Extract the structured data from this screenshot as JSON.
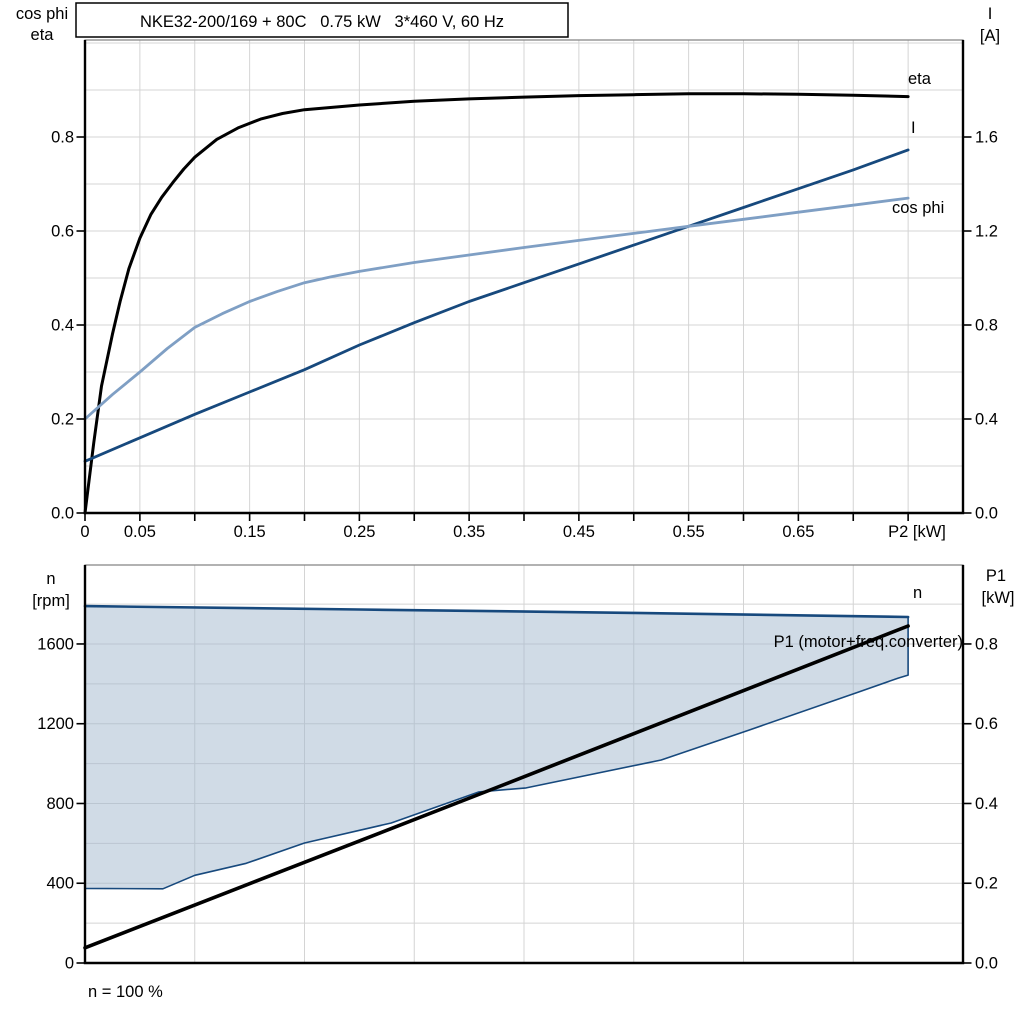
{
  "page": {
    "background": "#ffffff"
  },
  "colors": {
    "black": "#000000",
    "dark_blue": "#17497d",
    "light_blue": "#7f9fc4",
    "region_fill": "#a1b7cd",
    "gridline": "#d4d4d4",
    "frame": "#7f7f7f"
  },
  "chart_data": [
    {
      "id": "efficiency-chart",
      "type": "line",
      "title": "NKE32-200/169 + 80C   0.75 kW   3*460 V, 60 Hz",
      "left_axis_label_lines": [
        "cos phi",
        "eta"
      ],
      "right_axis_label_lines": [
        "I",
        "[A]"
      ],
      "x_axis_label": "P2 [kW]",
      "x_range": [
        0,
        0.8
      ],
      "yl_range": [
        0,
        1.0064
      ],
      "yr_range": [
        0,
        2.0128
      ],
      "grid": {
        "x_step": 0.05,
        "yl_step": 0.1
      },
      "left_ticks": [
        {
          "v": 0.0,
          "label": "0.0"
        },
        {
          "v": 0.2,
          "label": "0.2"
        },
        {
          "v": 0.4,
          "label": "0.4"
        },
        {
          "v": 0.6,
          "label": "0.6"
        },
        {
          "v": 0.8,
          "label": "0.8"
        }
      ],
      "right_ticks": [
        {
          "v": 0.0,
          "label": "0.0"
        },
        {
          "v": 0.4,
          "label": "0.4"
        },
        {
          "v": 0.8,
          "label": "0.8"
        },
        {
          "v": 1.2,
          "label": "1.2"
        },
        {
          "v": 1.6,
          "label": "1.6"
        }
      ],
      "x_ticks": [
        {
          "v": 0,
          "label": "0"
        },
        {
          "v": 0.05,
          "label": "0.05"
        },
        {
          "v": 0.1
        },
        {
          "v": 0.15,
          "label": "0.15"
        },
        {
          "v": 0.2
        },
        {
          "v": 0.25,
          "label": "0.25"
        },
        {
          "v": 0.3
        },
        {
          "v": 0.35,
          "label": "0.35"
        },
        {
          "v": 0.4
        },
        {
          "v": 0.45,
          "label": "0.45"
        },
        {
          "v": 0.5
        },
        {
          "v": 0.55,
          "label": "0.55"
        },
        {
          "v": 0.6
        },
        {
          "v": 0.65,
          "label": "0.65"
        },
        {
          "v": 0.7
        },
        {
          "v": 0.75
        }
      ],
      "series": [
        {
          "key": "eta",
          "name": "eta",
          "color": "#000000",
          "axis": "left",
          "points": [
            [
              0,
              0
            ],
            [
              0.008,
              0.15
            ],
            [
              0.015,
              0.27
            ],
            [
              0.025,
              0.38
            ],
            [
              0.032,
              0.45
            ],
            [
              0.04,
              0.52
            ],
            [
              0.05,
              0.585
            ],
            [
              0.06,
              0.635
            ],
            [
              0.07,
              0.672
            ],
            [
              0.08,
              0.703
            ],
            [
              0.09,
              0.732
            ],
            [
              0.1,
              0.757
            ],
            [
              0.12,
              0.795
            ],
            [
              0.14,
              0.82
            ],
            [
              0.16,
              0.838
            ],
            [
              0.18,
              0.85
            ],
            [
              0.2,
              0.858
            ],
            [
              0.225,
              0.863
            ],
            [
              0.25,
              0.868
            ],
            [
              0.3,
              0.876
            ],
            [
              0.35,
              0.881
            ],
            [
              0.4,
              0.885
            ],
            [
              0.45,
              0.888
            ],
            [
              0.5,
              0.89
            ],
            [
              0.55,
              0.892
            ],
            [
              0.6,
              0.892
            ],
            [
              0.65,
              0.891
            ],
            [
              0.7,
              0.889
            ],
            [
              0.75,
              0.886
            ]
          ]
        },
        {
          "key": "current",
          "name": "I",
          "color": "#17497d",
          "axis": "right",
          "points": [
            [
              0,
              0.22
            ],
            [
              0.05,
              0.32
            ],
            [
              0.1,
              0.42
            ],
            [
              0.15,
              0.515
            ],
            [
              0.2,
              0.61
            ],
            [
              0.25,
              0.715
            ],
            [
              0.3,
              0.81
            ],
            [
              0.35,
              0.9
            ],
            [
              0.4,
              0.98
            ],
            [
              0.45,
              1.06
            ],
            [
              0.5,
              1.14
            ],
            [
              0.55,
              1.22
            ],
            [
              0.6,
              1.3
            ],
            [
              0.65,
              1.38
            ],
            [
              0.7,
              1.46
            ],
            [
              0.75,
              1.545
            ]
          ]
        },
        {
          "key": "cos-phi",
          "name": "cos phi",
          "color": "#7f9fc4",
          "axis": "left",
          "points": [
            [
              0,
              0.2
            ],
            [
              0.025,
              0.252
            ],
            [
              0.05,
              0.3
            ],
            [
              0.075,
              0.35
            ],
            [
              0.1,
              0.395
            ],
            [
              0.125,
              0.424
            ],
            [
              0.15,
              0.45
            ],
            [
              0.175,
              0.471
            ],
            [
              0.2,
              0.49
            ],
            [
              0.225,
              0.503
            ],
            [
              0.25,
              0.514
            ],
            [
              0.3,
              0.533
            ],
            [
              0.35,
              0.549
            ],
            [
              0.4,
              0.565
            ],
            [
              0.45,
              0.58
            ],
            [
              0.5,
              0.595
            ],
            [
              0.55,
              0.61
            ],
            [
              0.6,
              0.625
            ],
            [
              0.65,
              0.64
            ],
            [
              0.7,
              0.655
            ],
            [
              0.75,
              0.67
            ]
          ]
        }
      ]
    },
    {
      "id": "speed-power-chart",
      "type": "line",
      "left_axis_label_lines": [
        "n",
        "[rpm]"
      ],
      "right_axis_label_lines": [
        "P1",
        "[kW]"
      ],
      "footnote": "n = 100 %",
      "x_range": [
        0,
        0.8
      ],
      "yl_range": [
        0,
        1996
      ],
      "yr_range": [
        0,
        0.998
      ],
      "grid": {
        "x_step": 0.1,
        "yl_step": 200
      },
      "left_ticks": [
        {
          "v": 0,
          "label": "0"
        },
        {
          "v": 400,
          "label": "400"
        },
        {
          "v": 800,
          "label": "800"
        },
        {
          "v": 1200,
          "label": "1200"
        },
        {
          "v": 1600,
          "label": "1600"
        }
      ],
      "right_ticks": [
        {
          "v": 0.0,
          "label": "0.0"
        },
        {
          "v": 0.2,
          "label": "0.2"
        },
        {
          "v": 0.4,
          "label": "0.4"
        },
        {
          "v": 0.6,
          "label": "0.6"
        },
        {
          "v": 0.8,
          "label": "0.8"
        }
      ],
      "x_ticks": [],
      "region": {
        "name": "speed-control-range",
        "fill": "#a1b7cd",
        "fill_opacity": 0.5,
        "stroke": "#17497d",
        "axis": "left",
        "points": [
          [
            0,
            1790
          ],
          [
            0.25,
            1773
          ],
          [
            0.5,
            1756
          ],
          [
            0.75,
            1735
          ],
          [
            0.75,
            1444
          ],
          [
            0.741,
            1429
          ],
          [
            0.705,
            1359
          ],
          [
            0.605,
            1168
          ],
          [
            0.525,
            1018
          ],
          [
            0.402,
            878
          ],
          [
            0.359,
            858
          ],
          [
            0.279,
            702
          ],
          [
            0.2,
            602
          ],
          [
            0.147,
            500
          ],
          [
            0.1,
            440
          ],
          [
            0.071,
            372
          ],
          [
            0,
            374
          ]
        ]
      },
      "series": [
        {
          "key": "speed",
          "name": "n",
          "color": "#17497d",
          "axis": "left",
          "points": [
            [
              0,
              1790
            ],
            [
              0.25,
              1773
            ],
            [
              0.5,
              1756
            ],
            [
              0.75,
              1735
            ]
          ]
        },
        {
          "key": "p1",
          "name": "P1 (motor+freq.converter)",
          "color": "#000000",
          "axis": "right",
          "points": [
            [
              0,
              0.038
            ],
            [
              0.375,
              0.44
            ],
            [
              0.75,
              0.845
            ]
          ]
        }
      ]
    }
  ]
}
